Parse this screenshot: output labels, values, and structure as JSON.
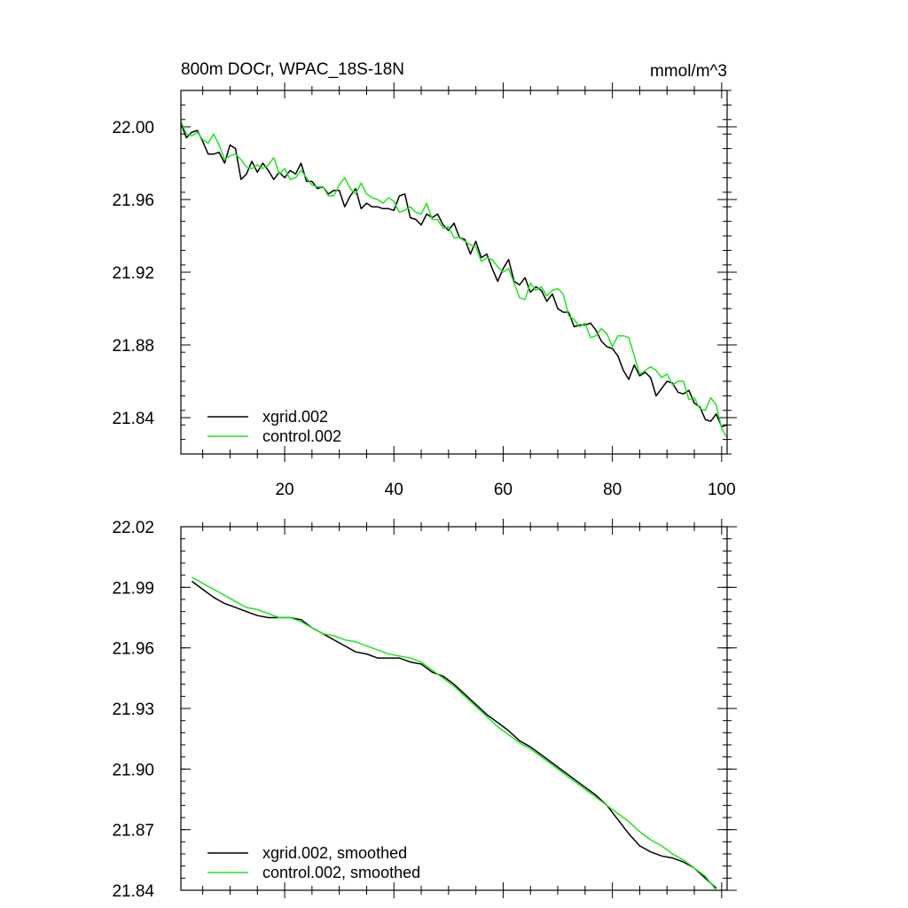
{
  "colors": {
    "xgrid": "#000000",
    "control": "#1ee61e"
  },
  "chart_data": [
    {
      "type": "line",
      "title": "800m DOCr, WPAC_18S-18N",
      "units": "mmol/m^3",
      "xlim": [
        1,
        101
      ],
      "ylim": [
        21.82,
        22.02
      ],
      "xticks": [
        20,
        40,
        60,
        80,
        100
      ],
      "xtick_labels": [
        "20",
        "40",
        "60",
        "80",
        "100"
      ],
      "yticks": [
        21.84,
        21.88,
        21.92,
        21.96,
        22.0
      ],
      "ytick_labels": [
        "21.84",
        "21.88",
        "21.92",
        "21.96",
        "22.00"
      ],
      "series": [
        {
          "name": "xgrid.002",
          "color": "#000000",
          "x": [
            1,
            2,
            3,
            4,
            5,
            6,
            7,
            8,
            9,
            10,
            11,
            12,
            13,
            14,
            15,
            16,
            17,
            18,
            19,
            20,
            21,
            22,
            23,
            24,
            25,
            26,
            27,
            28,
            29,
            30,
            31,
            32,
            33,
            34,
            35,
            36,
            37,
            38,
            39,
            40,
            41,
            42,
            43,
            44,
            45,
            46,
            47,
            48,
            49,
            50,
            51,
            52,
            53,
            54,
            55,
            56,
            57,
            58,
            59,
            60,
            61,
            62,
            63,
            64,
            65,
            66,
            67,
            68,
            69,
            70,
            71,
            72,
            73,
            74,
            75,
            76,
            77,
            78,
            79,
            80,
            81,
            82,
            83,
            84,
            85,
            86,
            87,
            88,
            89,
            90,
            91,
            92,
            93,
            94,
            95,
            96,
            97,
            98,
            99,
            100,
            101
          ],
          "values": [
            22.002,
            21.994,
            21.997,
            21.998,
            21.992,
            21.985,
            21.985,
            21.986,
            21.98,
            21.99,
            21.988,
            21.971,
            21.974,
            21.981,
            21.975,
            21.98,
            21.976,
            21.971,
            21.975,
            21.972,
            21.976,
            21.974,
            21.98,
            21.97,
            21.97,
            21.966,
            21.967,
            21.963,
            21.965,
            21.965,
            21.956,
            21.962,
            21.966,
            21.955,
            21.958,
            21.956,
            21.956,
            21.955,
            21.955,
            21.954,
            21.962,
            21.963,
            21.95,
            21.949,
            21.946,
            21.952,
            21.95,
            21.952,
            21.946,
            21.943,
            21.947,
            21.939,
            21.938,
            21.93,
            21.937,
            21.928,
            21.93,
            21.922,
            21.915,
            21.922,
            21.927,
            21.915,
            21.913,
            21.917,
            21.909,
            21.912,
            21.91,
            21.904,
            21.908,
            21.9,
            21.898,
            21.898,
            21.89,
            21.891,
            21.891,
            21.892,
            21.888,
            21.882,
            21.879,
            21.878,
            21.874,
            21.866,
            21.861,
            21.869,
            21.863,
            21.865,
            21.862,
            21.852,
            21.856,
            21.86,
            21.859,
            21.854,
            21.853,
            21.855,
            21.848,
            21.846,
            21.839,
            21.838,
            21.842,
            21.835,
            21.836
          ]
        },
        {
          "name": "control.002",
          "color": "#1ee61e",
          "x": [
            1,
            2,
            3,
            4,
            5,
            6,
            7,
            8,
            9,
            10,
            11,
            12,
            13,
            14,
            15,
            16,
            17,
            18,
            19,
            20,
            21,
            22,
            23,
            24,
            25,
            26,
            27,
            28,
            29,
            30,
            31,
            32,
            33,
            34,
            35,
            36,
            37,
            38,
            39,
            40,
            41,
            42,
            43,
            44,
            45,
            46,
            47,
            48,
            49,
            50,
            51,
            52,
            53,
            54,
            55,
            56,
            57,
            58,
            59,
            60,
            61,
            62,
            63,
            64,
            65,
            66,
            67,
            68,
            69,
            70,
            71,
            72,
            73,
            74,
            75,
            76,
            77,
            78,
            79,
            80,
            81,
            82,
            83,
            84,
            85,
            86,
            87,
            88,
            89,
            90,
            91,
            92,
            93,
            94,
            95,
            96,
            97,
            98,
            99,
            100,
            101
          ],
          "values": [
            22.003,
            21.996,
            21.995,
            21.997,
            21.993,
            21.991,
            21.996,
            21.99,
            21.982,
            21.984,
            21.985,
            21.982,
            21.978,
            21.977,
            21.979,
            21.977,
            21.979,
            21.983,
            21.974,
            21.977,
            21.971,
            21.972,
            21.976,
            21.972,
            21.968,
            21.967,
            21.967,
            21.962,
            21.962,
            21.968,
            21.972,
            21.966,
            21.963,
            21.969,
            21.963,
            21.961,
            21.96,
            21.958,
            21.961,
            21.959,
            21.953,
            21.954,
            21.956,
            21.953,
            21.952,
            21.958,
            21.949,
            21.949,
            21.944,
            21.945,
            21.939,
            21.939,
            21.937,
            21.935,
            21.934,
            21.926,
            21.928,
            21.927,
            21.923,
            21.92,
            21.922,
            21.914,
            21.906,
            21.905,
            21.914,
            21.91,
            21.912,
            21.907,
            21.91,
            21.911,
            21.908,
            21.896,
            21.894,
            21.89,
            21.892,
            21.884,
            21.885,
            21.889,
            21.886,
            21.879,
            21.885,
            21.885,
            21.884,
            21.874,
            21.864,
            21.866,
            21.868,
            21.866,
            21.862,
            21.864,
            21.858,
            21.86,
            21.86,
            21.85,
            21.851,
            21.845,
            21.844,
            21.851,
            21.847,
            21.834,
            21.829
          ]
        }
      ]
    },
    {
      "type": "line",
      "xlim": [
        1,
        101
      ],
      "ylim": [
        21.84,
        22.02
      ],
      "xticks": [
        20,
        40,
        60,
        80,
        100
      ],
      "yticks": [
        21.84,
        21.87,
        21.9,
        21.93,
        21.96,
        21.99,
        22.02
      ],
      "ytick_labels": [
        "21.84",
        "21.87",
        "21.90",
        "21.93",
        "21.96",
        "21.99",
        "22.02"
      ],
      "series": [
        {
          "name": "xgrid.002, smoothed",
          "color": "#000000",
          "x": [
            3,
            5,
            7,
            9,
            11,
            13,
            15,
            17,
            19,
            21,
            23,
            25,
            27,
            29,
            31,
            33,
            35,
            37,
            39,
            41,
            43,
            45,
            47,
            49,
            51,
            53,
            55,
            57,
            59,
            61,
            63,
            65,
            67,
            69,
            71,
            73,
            75,
            77,
            79,
            81,
            83,
            85,
            87,
            89,
            91,
            93,
            95,
            97,
            99
          ],
          "values": [
            21.993,
            21.989,
            21.985,
            21.982,
            21.98,
            21.978,
            21.976,
            21.975,
            21.975,
            21.975,
            21.974,
            21.97,
            21.967,
            21.964,
            21.961,
            21.958,
            21.957,
            21.955,
            21.955,
            21.955,
            21.953,
            21.952,
            21.948,
            21.946,
            21.942,
            21.937,
            21.932,
            21.927,
            21.923,
            21.919,
            21.914,
            21.911,
            21.907,
            21.903,
            21.899,
            21.895,
            21.891,
            21.887,
            21.882,
            21.875,
            21.868,
            21.862,
            21.859,
            21.857,
            21.856,
            21.854,
            21.851,
            21.846,
            21.841
          ]
        },
        {
          "name": "control.002, smoothed",
          "color": "#1ee61e",
          "x": [
            3,
            5,
            7,
            9,
            11,
            13,
            15,
            17,
            19,
            21,
            23,
            25,
            27,
            29,
            31,
            33,
            35,
            37,
            39,
            41,
            43,
            45,
            47,
            49,
            51,
            53,
            55,
            57,
            59,
            61,
            63,
            65,
            67,
            69,
            71,
            73,
            75,
            77,
            79,
            81,
            83,
            85,
            87,
            89,
            91,
            93,
            95,
            97,
            99
          ],
          "values": [
            21.995,
            21.992,
            21.989,
            21.986,
            21.983,
            21.98,
            21.979,
            21.977,
            21.975,
            21.975,
            21.973,
            21.97,
            21.967,
            21.966,
            21.964,
            21.963,
            21.961,
            21.959,
            21.957,
            21.956,
            21.955,
            21.953,
            21.949,
            21.945,
            21.941,
            21.936,
            21.931,
            21.926,
            21.921,
            21.917,
            21.913,
            21.91,
            21.906,
            21.902,
            21.898,
            21.894,
            21.89,
            21.886,
            21.882,
            21.878,
            21.874,
            21.869,
            21.865,
            21.862,
            21.858,
            21.855,
            21.851,
            21.847,
            21.84
          ]
        }
      ]
    }
  ]
}
